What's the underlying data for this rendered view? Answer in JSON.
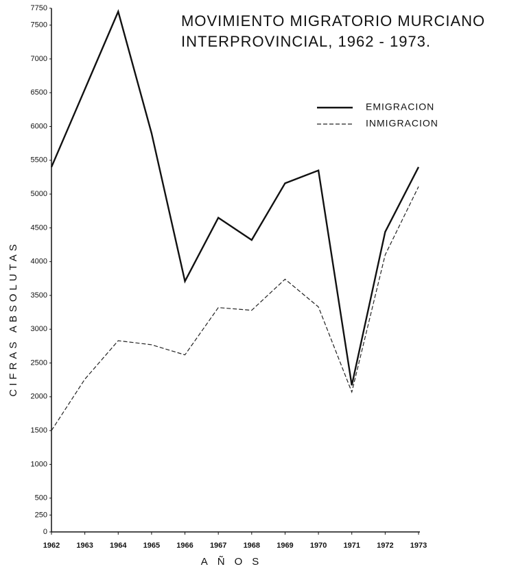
{
  "chart_data": {
    "type": "line",
    "title": [
      "MOVIMIENTO MIGRATORIO MURCIANO",
      "INTERPROVINCIAL, 1962 - 1973."
    ],
    "ylabel": "CIFRAS ABSOLUTAS",
    "xlabel": "AÑOS",
    "categories": [
      "1962",
      "1963",
      "1964",
      "1965",
      "1966",
      "1967",
      "1968",
      "1969",
      "1970",
      "1971",
      "1972",
      "1973"
    ],
    "series": [
      {
        "name": "EMIGRACION",
        "color": "#111111",
        "dash": false,
        "values": [
          5400,
          6550,
          7700,
          5900,
          3710,
          4650,
          4320,
          5160,
          5350,
          2170,
          4440,
          5400
        ]
      },
      {
        "name": "INMIGRACION",
        "color": "#222222",
        "dash": true,
        "values": [
          1500,
          2260,
          2830,
          2770,
          2620,
          3320,
          3280,
          3740,
          3330,
          2070,
          4100,
          5110
        ]
      }
    ],
    "ylim": [
      0,
      7750
    ],
    "yticks": [
      0,
      250,
      500,
      1000,
      1500,
      2000,
      2500,
      3000,
      3500,
      4000,
      4500,
      5000,
      5500,
      6000,
      6500,
      7000,
      7500,
      7750
    ],
    "grid": false,
    "legend": "upper right"
  }
}
